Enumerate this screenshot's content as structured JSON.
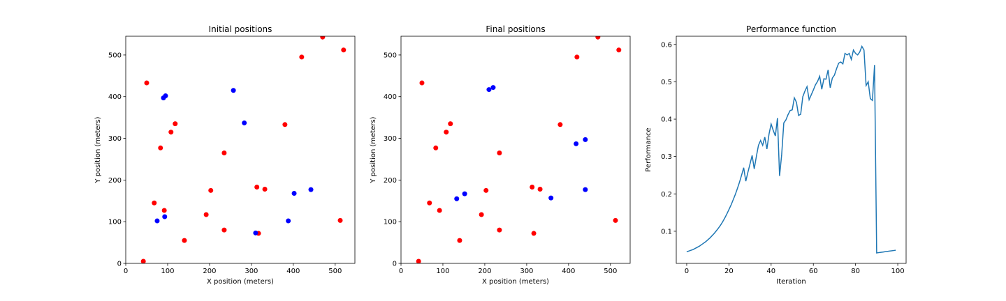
{
  "chart_data": [
    {
      "type": "scatter",
      "title": "Initial positions",
      "x_label": "X position (meters)",
      "y_label": "Y position (meters)",
      "xlim": [
        0,
        547
      ],
      "ylim": [
        0,
        545
      ],
      "xticks": [
        0,
        100,
        200,
        300,
        400,
        500
      ],
      "yticks": [
        0,
        100,
        200,
        300,
        400,
        500
      ],
      "series": [
        {
          "color": "#ff0000",
          "x": [
            42,
            50,
            470,
            420,
            520,
            108,
            118,
            83,
            235,
            380,
            203,
            313,
            332,
            68,
            92,
            192,
            235,
            317,
            140,
            512
          ],
          "y": [
            5,
            433,
            543,
            495,
            512,
            315,
            335,
            277,
            265,
            333,
            175,
            183,
            178,
            145,
            127,
            117,
            80,
            72,
            55,
            103
          ]
        },
        {
          "color": "#0000ff",
          "x": [
            90,
            95,
            257,
            283,
            402,
            442,
            75,
            93,
            310,
            388
          ],
          "y": [
            397,
            402,
            415,
            337,
            168,
            177,
            102,
            112,
            73,
            102
          ]
        }
      ]
    },
    {
      "type": "scatter",
      "title": "Final positions",
      "x_label": "X position (meters)",
      "y_label": "Y position (meters)",
      "xlim": [
        0,
        547
      ],
      "ylim": [
        0,
        545
      ],
      "xticks": [
        0,
        100,
        200,
        300,
        400,
        500
      ],
      "yticks": [
        0,
        100,
        200,
        300,
        400,
        500
      ],
      "series": [
        {
          "color": "#ff0000",
          "x": [
            42,
            50,
            470,
            420,
            520,
            108,
            118,
            83,
            235,
            380,
            203,
            313,
            332,
            68,
            92,
            192,
            235,
            317,
            140,
            512
          ],
          "y": [
            5,
            433,
            543,
            495,
            512,
            315,
            335,
            277,
            265,
            333,
            175,
            183,
            178,
            145,
            127,
            117,
            80,
            72,
            55,
            103
          ]
        },
        {
          "color": "#0000ff",
          "x": [
            210,
            220,
            418,
            440,
            440,
            152,
            133,
            358
          ],
          "y": [
            417,
            422,
            287,
            297,
            177,
            167,
            155,
            157
          ]
        }
      ]
    },
    {
      "type": "line",
      "title": "Performance function",
      "x_label": "Iteration",
      "y_label": "Performance",
      "xlim": [
        -4.95,
        103.95
      ],
      "ylim": [
        0.014,
        0.622
      ],
      "xticks": [
        0,
        20,
        40,
        60,
        80,
        100
      ],
      "yticks": [
        0.1,
        0.2,
        0.3,
        0.4,
        0.5,
        0.6
      ],
      "series": [
        {
          "color": "#1f77b4",
          "x": [
            0,
            1,
            2,
            3,
            4,
            5,
            6,
            7,
            8,
            9,
            10,
            11,
            12,
            13,
            14,
            15,
            16,
            17,
            18,
            19,
            20,
            21,
            22,
            23,
            24,
            25,
            26,
            27,
            28,
            29,
            30,
            31,
            32,
            33,
            34,
            35,
            36,
            37,
            38,
            39,
            40,
            41,
            42,
            43,
            44,
            45,
            46,
            47,
            48,
            49,
            50,
            51,
            52,
            53,
            54,
            55,
            56,
            57,
            58,
            59,
            60,
            61,
            62,
            63,
            64,
            65,
            66,
            67,
            68,
            69,
            70,
            71,
            72,
            73,
            74,
            75,
            76,
            77,
            78,
            79,
            80,
            81,
            82,
            83,
            84,
            85,
            86,
            87,
            88,
            89,
            90,
            91,
            92,
            93,
            94,
            95,
            96,
            97,
            98,
            99
          ],
          "values": [
            0.045,
            0.047,
            0.049,
            0.051,
            0.054,
            0.057,
            0.06,
            0.064,
            0.068,
            0.072,
            0.077,
            0.082,
            0.088,
            0.094,
            0.101,
            0.108,
            0.116,
            0.125,
            0.135,
            0.146,
            0.158,
            0.17,
            0.184,
            0.198,
            0.214,
            0.231,
            0.25,
            0.27,
            0.234,
            0.258,
            0.28,
            0.303,
            0.267,
            0.3,
            0.33,
            0.343,
            0.33,
            0.352,
            0.32,
            0.36,
            0.387,
            0.37,
            0.355,
            0.403,
            0.248,
            0.305,
            0.39,
            0.398,
            0.412,
            0.423,
            0.425,
            0.457,
            0.445,
            0.41,
            0.413,
            0.46,
            0.475,
            0.487,
            0.452,
            0.465,
            0.478,
            0.492,
            0.501,
            0.515,
            0.48,
            0.508,
            0.507,
            0.532,
            0.484,
            0.51,
            0.518,
            0.535,
            0.55,
            0.553,
            0.548,
            0.576,
            0.572,
            0.576,
            0.56,
            0.585,
            0.576,
            0.572,
            0.58,
            0.595,
            0.585,
            0.49,
            0.5,
            0.455,
            0.45,
            0.545,
            0.042,
            0.0428,
            0.0436,
            0.0444,
            0.0452,
            0.046,
            0.0468,
            0.0476,
            0.0484,
            0.0492
          ]
        }
      ]
    }
  ]
}
